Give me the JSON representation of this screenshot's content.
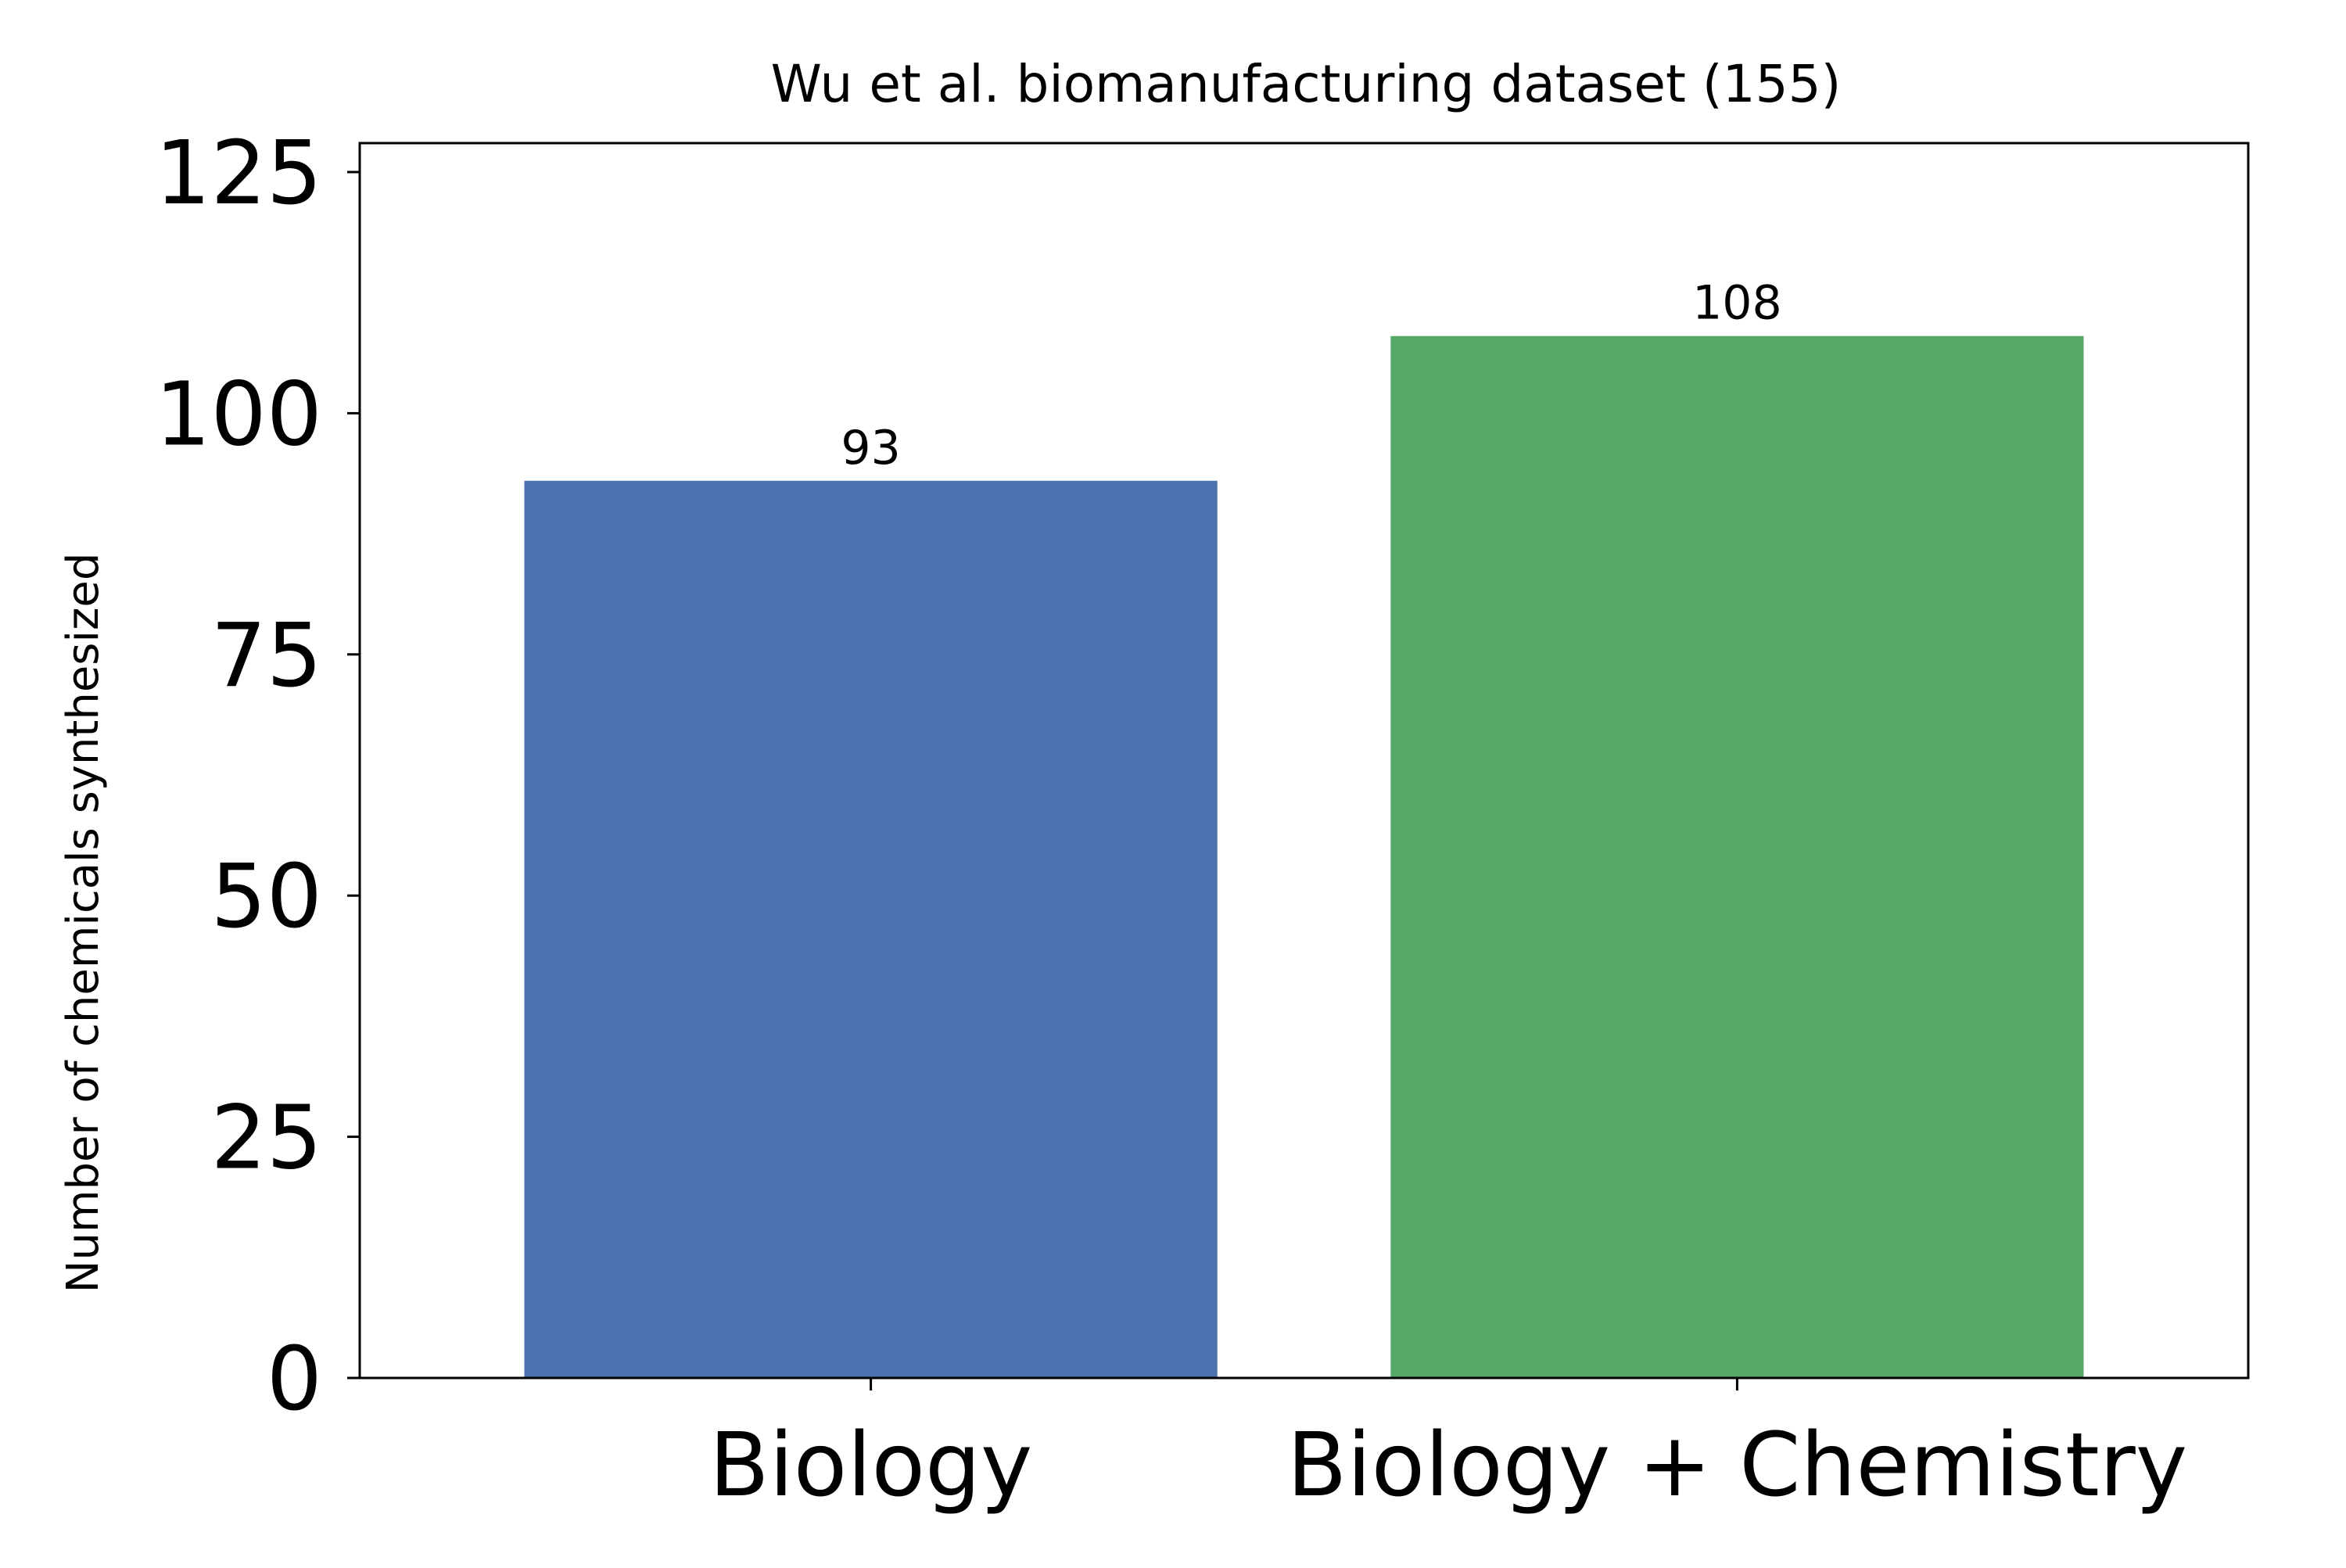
{
  "chart_data": {
    "type": "bar",
    "title": "Wu et al. biomanufacturing dataset (155)",
    "xlabel": "",
    "ylabel": "Number of chemicals synthesized",
    "categories": [
      "Biology",
      "Biology + Chemistry"
    ],
    "values": [
      93,
      108
    ],
    "value_labels": [
      "93",
      "108"
    ],
    "colors": [
      "#4c72b0",
      "#55a868"
    ],
    "ylim": [
      0,
      128
    ],
    "yticks": [
      0,
      25,
      50,
      75,
      100,
      125
    ],
    "ytick_labels": [
      "0",
      "25",
      "50",
      "75",
      "100",
      "125"
    ],
    "grid": false,
    "legend": "none"
  }
}
